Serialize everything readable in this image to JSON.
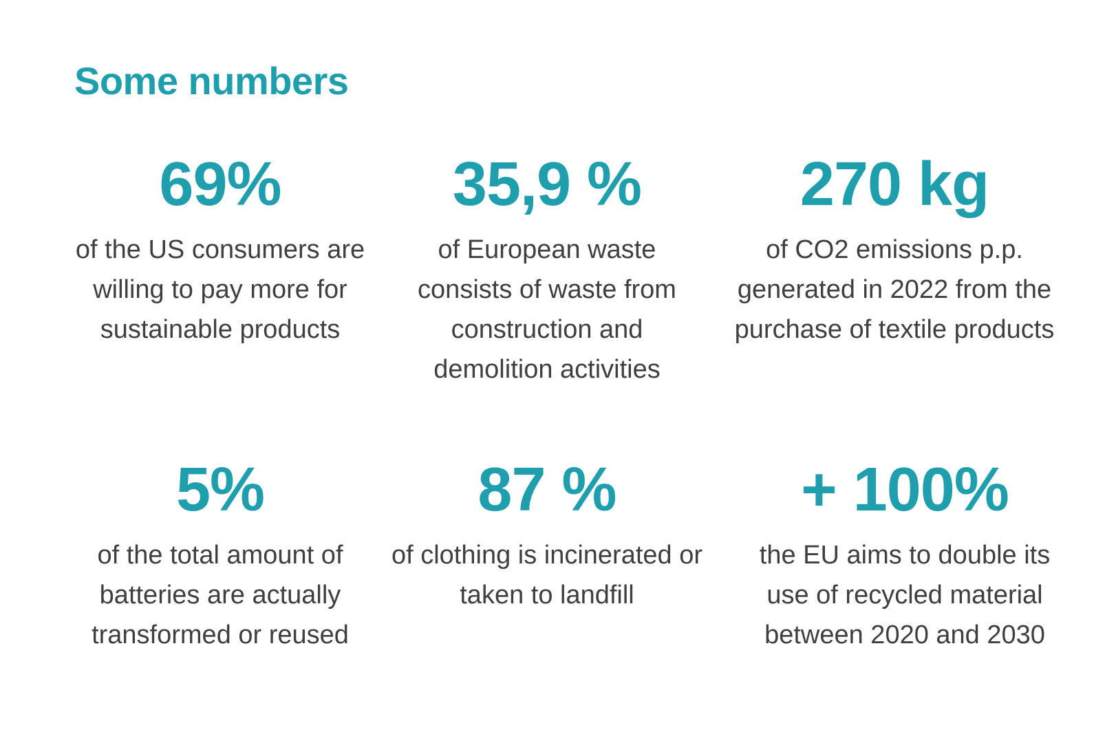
{
  "title": "Some numbers",
  "stats": [
    {
      "value": "69%",
      "description": "of the US consumers are willing to pay more for sustainable products"
    },
    {
      "value": "35,9 %",
      "description": "of European waste consists of waste from construction and demolition activities"
    },
    {
      "value": "270 kg",
      "description": "of CO2 emissions p.p. generated in 2022 from the purchase of textile products"
    },
    {
      "value": "5%",
      "description": "of the total amount of batteries are actually transformed or reused"
    },
    {
      "value": "87 %",
      "description": "of clothing is incinerated or taken to landfill"
    },
    {
      "value": "+ 100%",
      "description": "the EU aims to double its use of recycled material between 2020 and 2030"
    }
  ],
  "colors": {
    "accent": "#1f9fae",
    "text": "#3f3f3f",
    "background": "#ffffff"
  }
}
